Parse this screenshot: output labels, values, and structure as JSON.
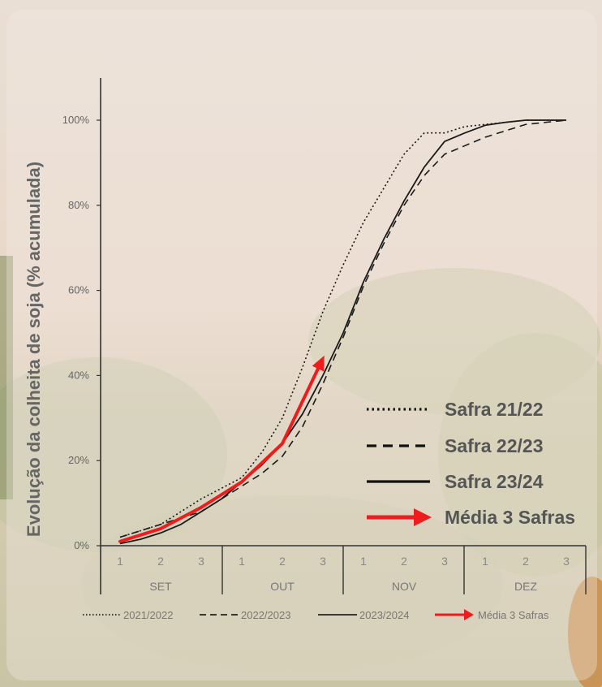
{
  "chart_data": {
    "type": "line",
    "ylabel": "Evolução da colheita de soja (% acumulada)",
    "xlabel": "",
    "y_tick_labels": [
      "0%",
      "20%",
      "40%",
      "60%",
      "80%",
      "100%"
    ],
    "ylim": [
      0,
      100
    ],
    "x_tick_labels": [
      "1",
      "2",
      "3",
      "1",
      "2",
      "3",
      "1",
      "2",
      "3",
      "1",
      "2",
      "3"
    ],
    "months": [
      "SET",
      "OUT",
      "NOV",
      "DEZ"
    ],
    "x": [
      0,
      0.5,
      1,
      1.5,
      2,
      2.5,
      3,
      3.5,
      4,
      4.5,
      5,
      5.5,
      6,
      6.5,
      7,
      7.5,
      8,
      8.5,
      9,
      9.5,
      10,
      10.5,
      11
    ],
    "series": [
      {
        "name": "2021/2022",
        "style": "dotted",
        "color": "#1a1a1a",
        "values": [
          2,
          3.5,
          5,
          8,
          11,
          13.5,
          16,
          22,
          30,
          42,
          55,
          66,
          76,
          84,
          92,
          97,
          97,
          98.5,
          99,
          99.5,
          100,
          100,
          100
        ]
      },
      {
        "name": "2022/2023",
        "style": "dashed",
        "color": "#1a1a1a",
        "values": [
          2,
          3.5,
          5,
          6.5,
          8,
          11,
          14,
          17,
          21,
          28,
          38,
          49,
          61,
          71,
          80,
          87,
          92,
          94,
          96,
          97.5,
          99,
          99.5,
          100
        ]
      },
      {
        "name": "2023/2024",
        "style": "solid",
        "color": "#1a1a1a",
        "values": [
          0.5,
          1.5,
          3,
          5,
          8,
          11,
          15,
          19,
          24,
          31,
          40,
          50,
          62,
          72,
          81,
          89,
          95,
          97,
          98.8,
          99.5,
          100,
          100,
          100
        ]
      }
    ],
    "media_3_safras": {
      "name": "Média 3 Safras",
      "color": "#ee1c1c",
      "x": [
        0,
        1,
        2,
        3,
        4,
        5
      ],
      "values": [
        1,
        4,
        9,
        15,
        24,
        44
      ]
    },
    "legend_bottom": [
      "2021/2022",
      "2022/2023",
      "2023/2024",
      "Média 3 Safras"
    ],
    "legend_large": [
      "Safra 21/22",
      "Safra 22/23",
      "Safra 23/24",
      "Média 3 Safras"
    ],
    "legend_position": "bottom",
    "grid": false
  }
}
